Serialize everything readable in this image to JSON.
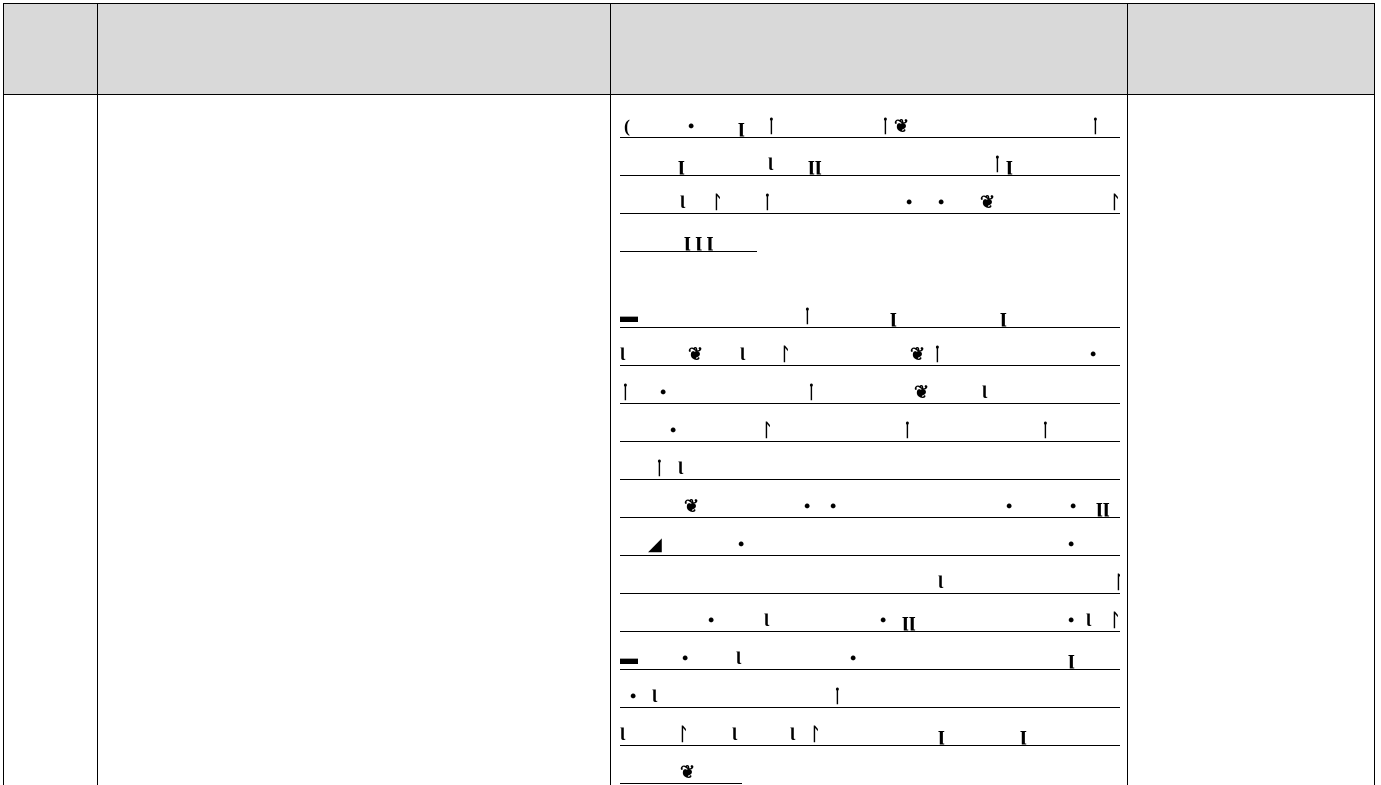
{
  "table": {
    "headers": [
      {
        "label": ""
      },
      {
        "label": ""
      },
      {
        "label": ""
      },
      {
        "label_line1": "",
        "label_line2": ""
      }
    ],
    "rows": [
      {
        "cells": [
          "",
          "",
          "",
          ""
        ]
      }
    ]
  },
  "colors": {
    "header_bg": "#d9d9d9",
    "rule": "#000000",
    "page_bg": "#ffffff"
  }
}
